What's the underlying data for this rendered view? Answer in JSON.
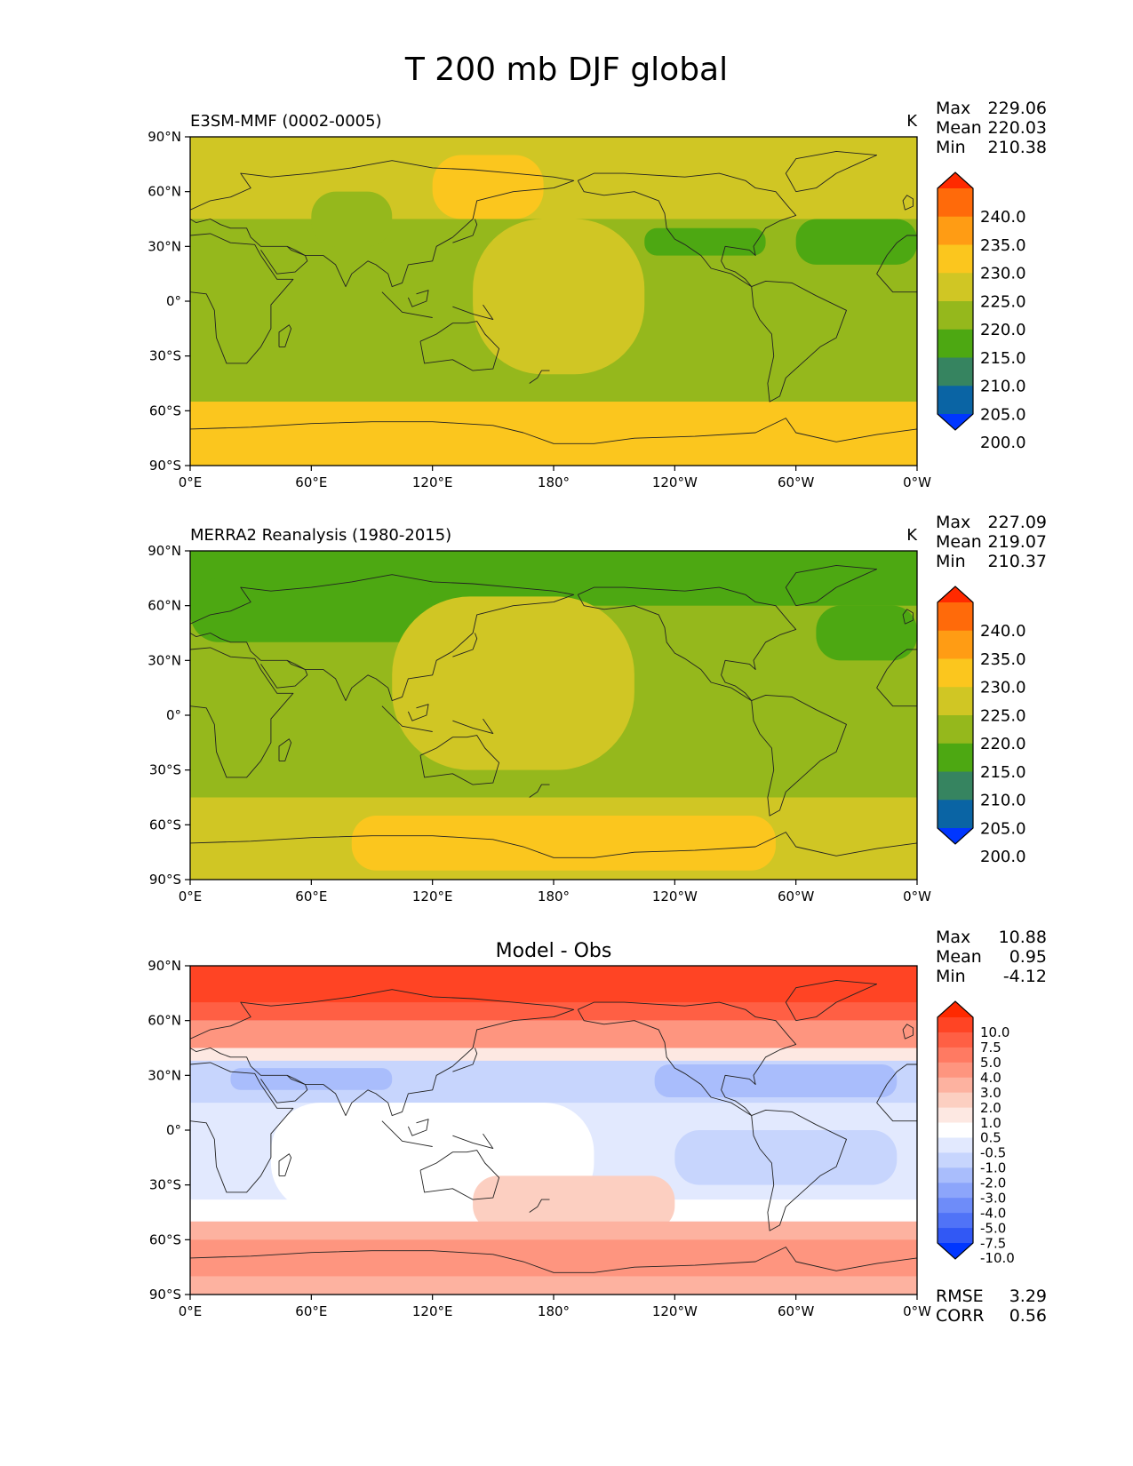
{
  "figure_title": "T 200 mb DJF global",
  "chart_data": [
    {
      "type": "heatmap",
      "panel": "test",
      "title": "E3SM-MMF (0002-0005)",
      "units": "K",
      "stats": {
        "Max": "229.06",
        "Mean": "220.03",
        "Min": "210.38"
      },
      "colorbar": {
        "levels": [
          "240.0",
          "235.0",
          "230.0",
          "225.0",
          "220.0",
          "215.0",
          "210.0",
          "205.0",
          "200.0"
        ],
        "colors": [
          "#ff2a00",
          "#ff6a0a",
          "#ff9c14",
          "#fbc61e",
          "#d0c624",
          "#95b81c",
          "#4da812",
          "#368460",
          "#0a64a4",
          "#0036ff"
        ]
      },
      "xticks": [
        "0°E",
        "60°E",
        "120°E",
        "180°",
        "120°W",
        "60°W",
        "0°W"
      ],
      "yticks": [
        "90°N",
        "60°N",
        "30°N",
        "0°",
        "30°S",
        "60°S",
        "90°S"
      ],
      "xlim": [
        0,
        360
      ],
      "ylim": [
        -90,
        90
      ],
      "field": {
        "background": "#95b81c",
        "regions": [
          {
            "level": "225-230",
            "color": "#fbc61e",
            "lat": [
              -90,
              -55
            ],
            "lon": [
              0,
              360
            ]
          },
          {
            "level": "220-225",
            "color": "#d0c624",
            "lat": [
              45,
              90
            ],
            "lon": [
              0,
              360
            ]
          },
          {
            "level": "220-225",
            "color": "#d0c624",
            "lat": [
              -40,
              45
            ],
            "lon": [
              140,
              225
            ]
          },
          {
            "level": "225-230",
            "color": "#fbc61e",
            "lat": [
              45,
              80
            ],
            "lon": [
              120,
              175
            ]
          },
          {
            "level": "215-220",
            "color": "#95b81c",
            "lat": [
              30,
              60
            ],
            "lon": [
              60,
              100
            ]
          },
          {
            "level": "210-215",
            "color": "#4da812",
            "lat": [
              25,
              40
            ],
            "lon": [
              225,
              285
            ]
          },
          {
            "level": "210-215",
            "color": "#4da812",
            "lat": [
              20,
              45
            ],
            "lon": [
              300,
              360
            ]
          }
        ]
      }
    },
    {
      "type": "heatmap",
      "panel": "reference",
      "title": "MERRA2 Reanalysis (1980-2015)",
      "units": "K",
      "stats": {
        "Max": "227.09",
        "Mean": "219.07",
        "Min": "210.37"
      },
      "colorbar": {
        "levels": [
          "240.0",
          "235.0",
          "230.0",
          "225.0",
          "220.0",
          "215.0",
          "210.0",
          "205.0",
          "200.0"
        ],
        "colors": [
          "#ff2a00",
          "#ff6a0a",
          "#ff9c14",
          "#fbc61e",
          "#d0c624",
          "#95b81c",
          "#4da812",
          "#368460",
          "#0a64a4",
          "#0036ff"
        ]
      },
      "xticks": [
        "0°E",
        "60°E",
        "120°E",
        "180°",
        "120°W",
        "60°W",
        "0°W"
      ],
      "yticks": [
        "90°N",
        "60°N",
        "30°N",
        "0°",
        "30°S",
        "60°S",
        "90°S"
      ],
      "xlim": [
        0,
        360
      ],
      "ylim": [
        -90,
        90
      ],
      "field": {
        "background": "#95b81c",
        "regions": [
          {
            "level": "210-215",
            "color": "#4da812",
            "lat": [
              60,
              90
            ],
            "lon": [
              0,
              360
            ]
          },
          {
            "level": "210-215",
            "color": "#4da812",
            "lat": [
              40,
              75
            ],
            "lon": [
              0,
              120
            ]
          },
          {
            "level": "220-225",
            "color": "#d0c624",
            "lat": [
              -90,
              -45
            ],
            "lon": [
              0,
              360
            ]
          },
          {
            "level": "225-230",
            "color": "#fbc61e",
            "lat": [
              -85,
              -55
            ],
            "lon": [
              80,
              290
            ]
          },
          {
            "level": "220-225",
            "color": "#d0c624",
            "lat": [
              -30,
              65
            ],
            "lon": [
              100,
              220
            ]
          },
          {
            "level": "210-215",
            "color": "#4da812",
            "lat": [
              30,
              60
            ],
            "lon": [
              310,
              360
            ]
          }
        ]
      }
    },
    {
      "type": "heatmap",
      "panel": "difference",
      "title": "Model - Obs",
      "units": "",
      "stats": {
        "Max": "10.88",
        "Mean": "0.95",
        "Min": "-4.12"
      },
      "metrics": {
        "RMSE": "3.29",
        "CORR": "0.56"
      },
      "colorbar": {
        "levels": [
          "10.0",
          "7.5",
          "5.0",
          "4.0",
          "3.0",
          "2.0",
          "1.0",
          "0.5",
          "-0.5",
          "-1.0",
          "-2.0",
          "-3.0",
          "-4.0",
          "-5.0",
          "-7.5",
          "-10.0"
        ],
        "colors": [
          "#ff2a00",
          "#ff4424",
          "#ff5f44",
          "#ff7a62",
          "#fe957f",
          "#fdb2a0",
          "#fccfc1",
          "#fde8e2",
          "#ffffff",
          "#e2e9fe",
          "#c7d5fd",
          "#a9bdfc",
          "#8ca5fb",
          "#6e8cf9",
          "#5073f7",
          "#3158f5",
          "#0036ff"
        ]
      },
      "xticks": [
        "0°E",
        "60°E",
        "120°E",
        "180°",
        "120°W",
        "60°W",
        "0°W"
      ],
      "yticks": [
        "90°N",
        "60°N",
        "30°N",
        "0°",
        "30°S",
        "60°S",
        "90°S"
      ],
      "xlim": [
        0,
        360
      ],
      "ylim": [
        -90,
        90
      ],
      "field": {
        "background": "#e2e9fe",
        "regions": [
          {
            "level": "5.0 to 7.5",
            "color": "#ff5f44",
            "lat": [
              60,
              90
            ],
            "lon": [
              0,
              360
            ]
          },
          {
            "level": "7.5 to 10.0",
            "color": "#ff4424",
            "lat": [
              70,
              90
            ],
            "lon": [
              0,
              360
            ]
          },
          {
            "level": "3.0 to 4.0",
            "color": "#fe957f",
            "lat": [
              45,
              60
            ],
            "lon": [
              0,
              360
            ]
          },
          {
            "level": "0.5 to 1.0",
            "color": "#fde8e2",
            "lat": [
              38,
              45
            ],
            "lon": [
              0,
              360
            ]
          },
          {
            "level": "-2.0 to -1.0",
            "color": "#c7d5fd",
            "lat": [
              15,
              38
            ],
            "lon": [
              0,
              360
            ]
          },
          {
            "level": "-3.0 to -2.0",
            "color": "#a9bdfc",
            "lat": [
              22,
              34
            ],
            "lon": [
              20,
              100
            ]
          },
          {
            "level": "-3.0 to -2.0",
            "color": "#a9bdfc",
            "lat": [
              18,
              36
            ],
            "lon": [
              230,
              350
            ]
          },
          {
            "level": "-0.5 to 0.5",
            "color": "#ffffff",
            "lat": [
              -45,
              15
            ],
            "lon": [
              40,
              200
            ]
          },
          {
            "level": "-0.5 to 0.5",
            "color": "#ffffff",
            "lat": [
              -50,
              -38
            ],
            "lon": [
              0,
              360
            ]
          },
          {
            "level": "1.0 to 2.0",
            "color": "#fccfc1",
            "lat": [
              -55,
              -25
            ],
            "lon": [
              140,
              240
            ]
          },
          {
            "level": "2.0 to 3.0",
            "color": "#fdb2a0",
            "lat": [
              -90,
              -50
            ],
            "lon": [
              0,
              360
            ]
          },
          {
            "level": "3.0 to 4.0",
            "color": "#fe957f",
            "lat": [
              -80,
              -60
            ],
            "lon": [
              0,
              360
            ]
          },
          {
            "level": "-2.0 to -1.0",
            "color": "#c7d5fd",
            "lat": [
              -30,
              0
            ],
            "lon": [
              240,
              350
            ]
          }
        ]
      }
    }
  ]
}
